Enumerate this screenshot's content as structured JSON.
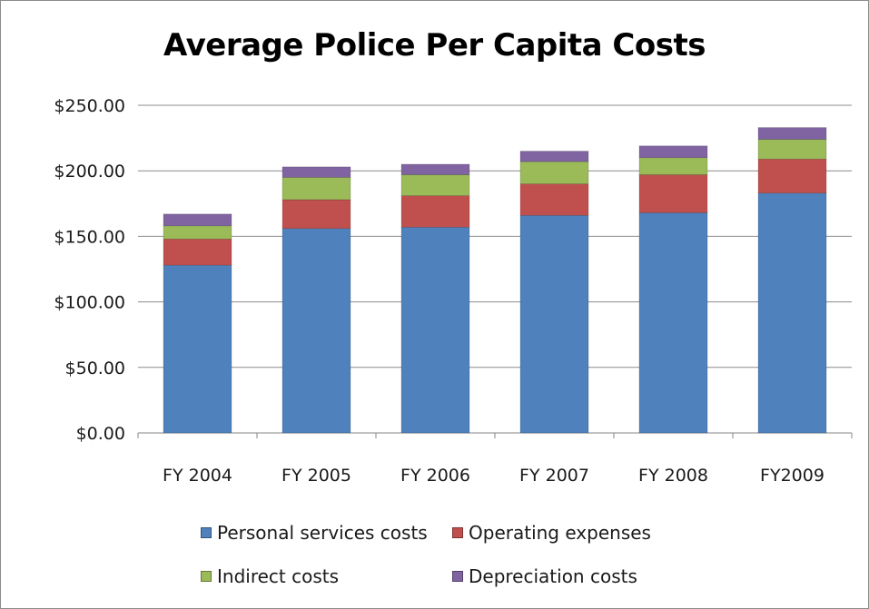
{
  "chart_data": {
    "type": "bar",
    "stacked": true,
    "title": "Average Police Per Capita Costs",
    "xlabel": "",
    "ylabel": "",
    "categories": [
      "FY 2004",
      "FY 2005",
      "FY 2006",
      "FY 2007",
      "FY 2008",
      "FY2009"
    ],
    "y_ticks": [
      "$0.00",
      "$50.00",
      "$100.00",
      "$150.00",
      "$200.00",
      "$250.00"
    ],
    "ylim": [
      0,
      250
    ],
    "grid": true,
    "legend_position": "bottom",
    "series": [
      {
        "name": "Personal services costs",
        "color": "#4f81bd",
        "values": [
          128,
          156,
          157,
          166,
          168,
          183
        ]
      },
      {
        "name": "Operating expenses",
        "color": "#c0504d",
        "values": [
          20,
          22,
          24,
          24,
          29,
          26
        ]
      },
      {
        "name": "Indirect costs",
        "color": "#9bbb59",
        "values": [
          10,
          17,
          16,
          17,
          13,
          15
        ]
      },
      {
        "name": "Depreciation costs",
        "color": "#8064a2",
        "values": [
          9,
          8,
          8,
          8,
          9,
          9
        ]
      }
    ]
  }
}
